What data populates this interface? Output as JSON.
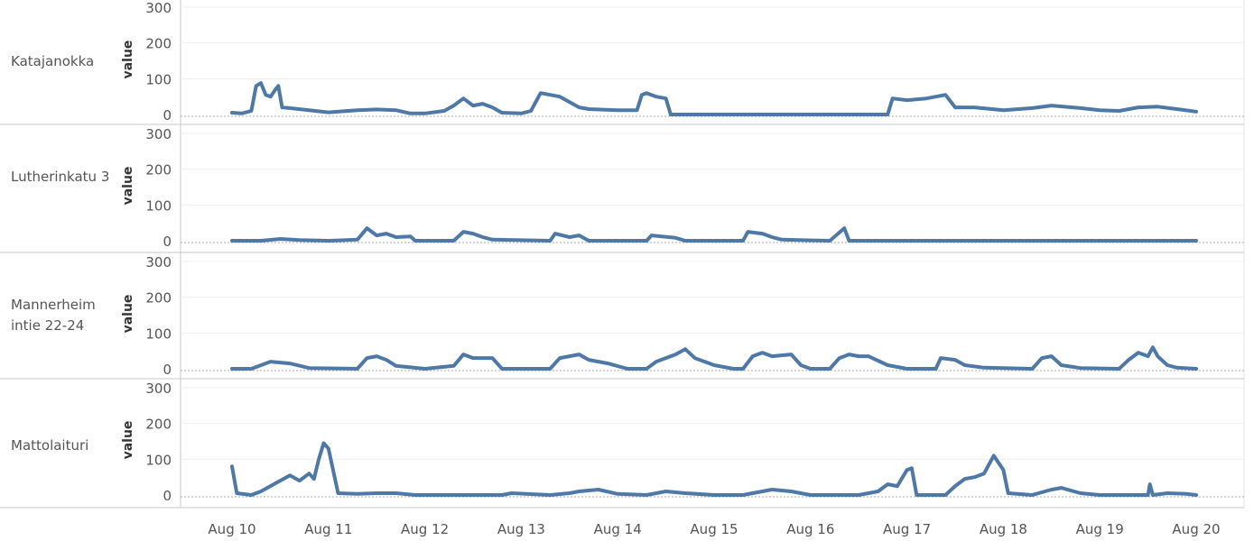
{
  "chart_data": {
    "type": "line",
    "ylabel": "value",
    "ylim": [
      0,
      300
    ],
    "y_ticks": [
      0,
      100,
      200,
      300
    ],
    "x_ticks": [
      "Aug 10",
      "Aug 11",
      "Aug 12",
      "Aug 13",
      "Aug 14",
      "Aug 15",
      "Aug 16",
      "Aug 17",
      "Aug 18",
      "Aug 19",
      "Aug 20"
    ],
    "series_color": "#4e79a7",
    "series": [
      {
        "name": "Katajanokka",
        "points": [
          [
            0,
            5
          ],
          [
            0.1,
            3
          ],
          [
            0.2,
            10
          ],
          [
            0.25,
            80
          ],
          [
            0.3,
            88
          ],
          [
            0.35,
            55
          ],
          [
            0.4,
            50
          ],
          [
            0.45,
            70
          ],
          [
            0.48,
            80
          ],
          [
            0.52,
            20
          ],
          [
            0.6,
            18
          ],
          [
            1,
            6
          ],
          [
            1.3,
            12
          ],
          [
            1.5,
            14
          ],
          [
            1.7,
            12
          ],
          [
            1.85,
            3
          ],
          [
            2.0,
            3
          ],
          [
            2.2,
            10
          ],
          [
            2.3,
            25
          ],
          [
            2.4,
            45
          ],
          [
            2.5,
            25
          ],
          [
            2.6,
            30
          ],
          [
            2.7,
            20
          ],
          [
            2.8,
            5
          ],
          [
            3.0,
            3
          ],
          [
            3.1,
            10
          ],
          [
            3.2,
            60
          ],
          [
            3.3,
            55
          ],
          [
            3.4,
            50
          ],
          [
            3.6,
            20
          ],
          [
            3.7,
            15
          ],
          [
            4.0,
            12
          ],
          [
            4.2,
            12
          ],
          [
            4.25,
            55
          ],
          [
            4.3,
            60
          ],
          [
            4.4,
            50
          ],
          [
            4.5,
            45
          ],
          [
            4.55,
            0
          ],
          [
            6.8,
            0
          ],
          [
            6.85,
            45
          ],
          [
            7.0,
            40
          ],
          [
            7.2,
            45
          ],
          [
            7.4,
            55
          ],
          [
            7.5,
            20
          ],
          [
            7.7,
            20
          ],
          [
            8.0,
            12
          ],
          [
            8.3,
            18
          ],
          [
            8.5,
            25
          ],
          [
            8.8,
            18
          ],
          [
            9.0,
            12
          ],
          [
            9.2,
            10
          ],
          [
            9.4,
            20
          ],
          [
            9.6,
            22
          ],
          [
            9.8,
            15
          ],
          [
            10.0,
            8
          ]
        ]
      },
      {
        "name": "Lutherinkatu 3",
        "points": [
          [
            0,
            0
          ],
          [
            0.3,
            0
          ],
          [
            0.5,
            5
          ],
          [
            0.7,
            2
          ],
          [
            1,
            0
          ],
          [
            1.3,
            3
          ],
          [
            1.4,
            35
          ],
          [
            1.5,
            15
          ],
          [
            1.6,
            20
          ],
          [
            1.7,
            10
          ],
          [
            1.85,
            12
          ],
          [
            1.9,
            0
          ],
          [
            2.3,
            0
          ],
          [
            2.4,
            25
          ],
          [
            2.5,
            20
          ],
          [
            2.6,
            10
          ],
          [
            2.7,
            3
          ],
          [
            3.3,
            0
          ],
          [
            3.35,
            20
          ],
          [
            3.5,
            10
          ],
          [
            3.6,
            15
          ],
          [
            3.7,
            0
          ],
          [
            4.3,
            0
          ],
          [
            4.35,
            15
          ],
          [
            4.6,
            8
          ],
          [
            4.7,
            0
          ],
          [
            5.3,
            0
          ],
          [
            5.35,
            25
          ],
          [
            5.5,
            20
          ],
          [
            5.6,
            10
          ],
          [
            5.7,
            3
          ],
          [
            6.2,
            0
          ],
          [
            6.35,
            35
          ],
          [
            6.4,
            0
          ],
          [
            10,
            0
          ]
        ]
      },
      {
        "name": "Mannerheimintie 22-24",
        "points": [
          [
            0,
            0
          ],
          [
            0.2,
            0
          ],
          [
            0.4,
            20
          ],
          [
            0.6,
            15
          ],
          [
            0.8,
            2
          ],
          [
            1.3,
            0
          ],
          [
            1.4,
            30
          ],
          [
            1.5,
            35
          ],
          [
            1.6,
            25
          ],
          [
            1.7,
            8
          ],
          [
            2.0,
            0
          ],
          [
            2.3,
            8
          ],
          [
            2.4,
            40
          ],
          [
            2.5,
            30
          ],
          [
            2.7,
            30
          ],
          [
            2.8,
            0
          ],
          [
            3.3,
            0
          ],
          [
            3.4,
            30
          ],
          [
            3.5,
            35
          ],
          [
            3.6,
            40
          ],
          [
            3.7,
            25
          ],
          [
            3.9,
            15
          ],
          [
            4.1,
            0
          ],
          [
            4.3,
            0
          ],
          [
            4.4,
            20
          ],
          [
            4.5,
            30
          ],
          [
            4.6,
            40
          ],
          [
            4.7,
            55
          ],
          [
            4.8,
            30
          ],
          [
            5.0,
            10
          ],
          [
            5.2,
            0
          ],
          [
            5.3,
            0
          ],
          [
            5.4,
            35
          ],
          [
            5.5,
            45
          ],
          [
            5.6,
            35
          ],
          [
            5.8,
            40
          ],
          [
            5.9,
            10
          ],
          [
            6.0,
            0
          ],
          [
            6.2,
            0
          ],
          [
            6.3,
            30
          ],
          [
            6.4,
            40
          ],
          [
            6.5,
            35
          ],
          [
            6.6,
            35
          ],
          [
            6.8,
            10
          ],
          [
            7.0,
            0
          ],
          [
            7.3,
            0
          ],
          [
            7.35,
            30
          ],
          [
            7.5,
            25
          ],
          [
            7.6,
            10
          ],
          [
            7.8,
            3
          ],
          [
            8.3,
            0
          ],
          [
            8.4,
            30
          ],
          [
            8.5,
            35
          ],
          [
            8.6,
            10
          ],
          [
            8.8,
            2
          ],
          [
            9.2,
            0
          ],
          [
            9.3,
            25
          ],
          [
            9.4,
            45
          ],
          [
            9.5,
            35
          ],
          [
            9.55,
            60
          ],
          [
            9.6,
            35
          ],
          [
            9.7,
            10
          ],
          [
            9.8,
            3
          ],
          [
            10.0,
            0
          ]
        ]
      },
      {
        "name": "Mattolaituri",
        "points": [
          [
            0,
            80
          ],
          [
            0.05,
            5
          ],
          [
            0.2,
            0
          ],
          [
            0.3,
            10
          ],
          [
            0.5,
            40
          ],
          [
            0.6,
            55
          ],
          [
            0.7,
            40
          ],
          [
            0.8,
            60
          ],
          [
            0.85,
            45
          ],
          [
            0.9,
            100
          ],
          [
            0.95,
            145
          ],
          [
            1.0,
            130
          ],
          [
            1.1,
            5
          ],
          [
            1.3,
            3
          ],
          [
            1.5,
            5
          ],
          [
            1.7,
            5
          ],
          [
            1.9,
            0
          ],
          [
            2.8,
            0
          ],
          [
            2.9,
            5
          ],
          [
            3.3,
            0
          ],
          [
            3.5,
            5
          ],
          [
            3.6,
            10
          ],
          [
            3.8,
            15
          ],
          [
            4.0,
            3
          ],
          [
            4.3,
            0
          ],
          [
            4.5,
            10
          ],
          [
            4.7,
            5
          ],
          [
            5.0,
            0
          ],
          [
            5.3,
            0
          ],
          [
            5.4,
            5
          ],
          [
            5.6,
            15
          ],
          [
            5.8,
            10
          ],
          [
            6.0,
            0
          ],
          [
            6.5,
            0
          ],
          [
            6.7,
            10
          ],
          [
            6.8,
            30
          ],
          [
            6.9,
            25
          ],
          [
            7.0,
            70
          ],
          [
            7.05,
            75
          ],
          [
            7.1,
            0
          ],
          [
            7.4,
            0
          ],
          [
            7.5,
            25
          ],
          [
            7.6,
            45
          ],
          [
            7.7,
            50
          ],
          [
            7.8,
            60
          ],
          [
            7.9,
            110
          ],
          [
            8.0,
            70
          ],
          [
            8.05,
            5
          ],
          [
            8.3,
            0
          ],
          [
            8.5,
            15
          ],
          [
            8.6,
            20
          ],
          [
            8.8,
            5
          ],
          [
            9.0,
            0
          ],
          [
            9.5,
            0
          ],
          [
            9.52,
            30
          ],
          [
            9.55,
            0
          ],
          [
            9.7,
            5
          ],
          [
            9.9,
            3
          ],
          [
            10.0,
            0
          ]
        ]
      }
    ]
  },
  "rows": [
    {
      "label": "Katajanokka"
    },
    {
      "label": "Lutherinkatu 3"
    },
    {
      "label": "Mannerheim intie 22-24"
    },
    {
      "label": "Mattolaituri"
    }
  ]
}
